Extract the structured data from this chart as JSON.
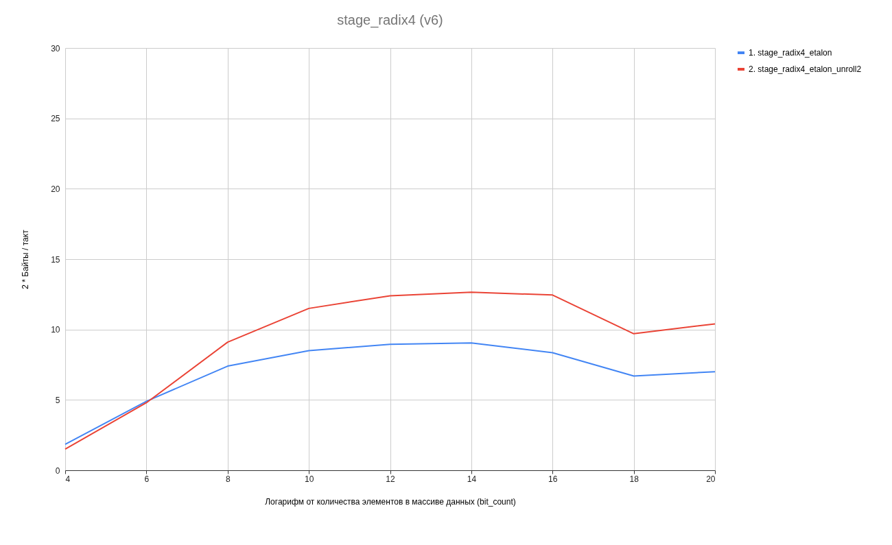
{
  "chart_data": {
    "type": "line",
    "title": "stage_radix4 (v6)",
    "xlabel": "Логарифм от количества элементов в массиве данных (bit_count)",
    "ylabel": "2 * Байты / такт",
    "x": [
      4,
      6,
      8,
      10,
      12,
      14,
      16,
      18,
      20
    ],
    "series": [
      {
        "name": "1. stage_radix4_etalon",
        "color": "#4285f4",
        "values": [
          1.85,
          4.9,
          7.4,
          8.5,
          8.95,
          9.05,
          8.35,
          6.7,
          7.0
        ]
      },
      {
        "name": "2. stage_radix4_etalon_unroll2",
        "color": "#ea4335",
        "values": [
          1.5,
          4.8,
          9.1,
          11.5,
          12.4,
          12.65,
          12.45,
          9.7,
          10.4
        ]
      }
    ],
    "xlim": [
      4,
      20
    ],
    "xticks": [
      4,
      6,
      8,
      10,
      12,
      14,
      16,
      18,
      20
    ],
    "ylim": [
      0,
      30
    ],
    "yticks": [
      0,
      5,
      10,
      15,
      20,
      25,
      30
    ],
    "grid": true,
    "legend": "top right",
    "marker": "none",
    "line_style": "solid"
  }
}
